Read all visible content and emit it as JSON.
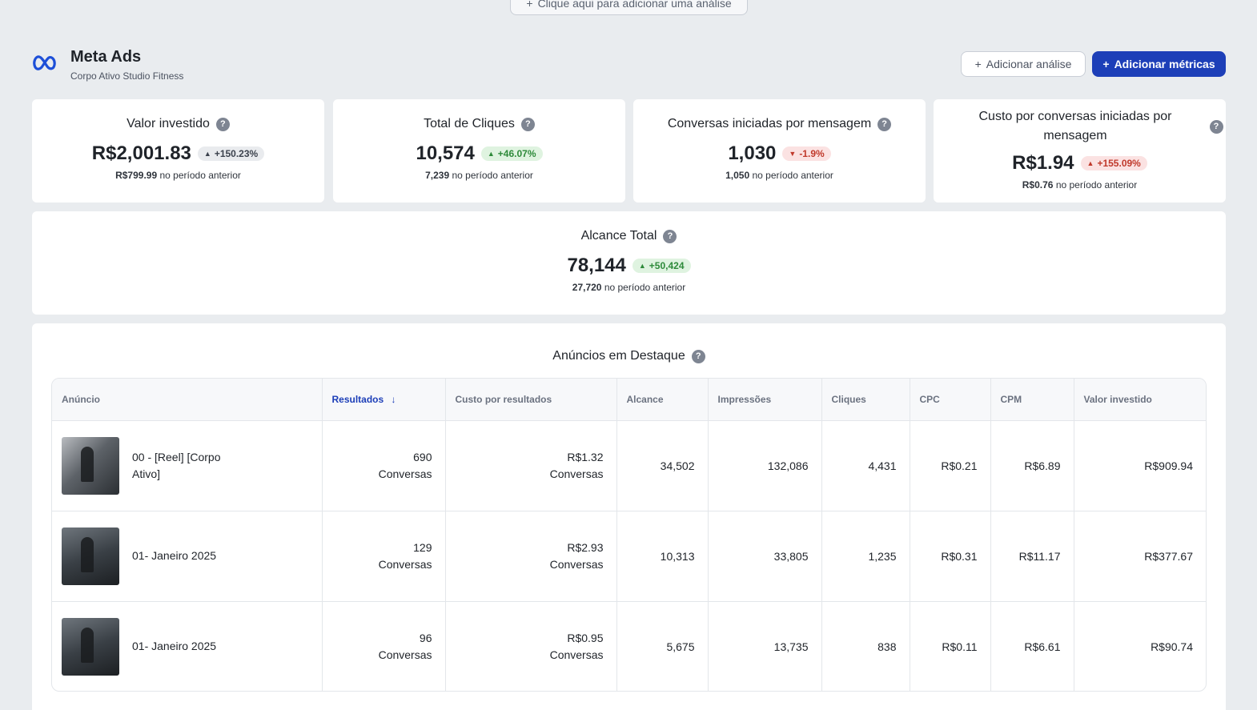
{
  "top_add": {
    "label": "Clique aqui para adicionar uma análise"
  },
  "header": {
    "title": "Meta Ads",
    "subtitle": "Corpo Ativo Studio Fitness",
    "add_analysis": "Adicionar análise",
    "add_metrics": "Adicionar métricas"
  },
  "kpis": [
    {
      "title": "Valor investido",
      "value": "R$2,001.83",
      "change": "+150.23%",
      "trend": "up",
      "tone": "gray",
      "prev_value": "R$799.99",
      "prev_label": "no período anterior"
    },
    {
      "title": "Total de Cliques",
      "value": "10,574",
      "change": "+46.07%",
      "trend": "up",
      "tone": "green",
      "prev_value": "7,239",
      "prev_label": "no período anterior"
    },
    {
      "title": "Conversas iniciadas por mensagem",
      "value": "1,030",
      "change": "-1.9%",
      "trend": "down",
      "tone": "red",
      "prev_value": "1,050",
      "prev_label": "no período anterior"
    },
    {
      "title": "Custo por conversas iniciadas por mensagem",
      "value": "R$1.94",
      "change": "+155.09%",
      "trend": "up",
      "tone": "red",
      "prev_value": "R$0.76",
      "prev_label": "no período anterior"
    }
  ],
  "reach": {
    "title": "Alcance Total",
    "value": "78,144",
    "change": "+50,424",
    "trend": "up",
    "tone": "green",
    "prev_value": "27,720",
    "prev_label": "no período anterior"
  },
  "ads_table": {
    "title": "Anúncios em Destaque",
    "columns": [
      "Anúncio",
      "Resultados",
      "Custo por resultados",
      "Alcance",
      "Impressões",
      "Cliques",
      "CPC",
      "CPM",
      "Valor investido"
    ],
    "sorted_column": "Resultados",
    "rows": [
      {
        "name": "00 - [Reel] [Corpo Ativo]",
        "results": "690",
        "results_unit": "Conversas",
        "cost": "R$1.32",
        "cost_unit": "Conversas",
        "reach": "34,502",
        "impressions": "132,086",
        "clicks": "4,431",
        "cpc": "R$0.21",
        "cpm": "R$6.89",
        "spend": "R$909.94"
      },
      {
        "name": "01- Janeiro 2025",
        "results": "129",
        "results_unit": "Conversas",
        "cost": "R$2.93",
        "cost_unit": "Conversas",
        "reach": "10,313",
        "impressions": "33,805",
        "clicks": "1,235",
        "cpc": "R$0.31",
        "cpm": "R$11.17",
        "spend": "R$377.67"
      },
      {
        "name": "01- Janeiro 2025",
        "results": "96",
        "results_unit": "Conversas",
        "cost": "R$0.95",
        "cost_unit": "Conversas",
        "reach": "5,675",
        "impressions": "13,735",
        "clicks": "838",
        "cpc": "R$0.11",
        "cpm": "R$6.61",
        "spend": "R$90.74"
      }
    ]
  },
  "colors": {
    "primary": "#1d3fb8",
    "background": "#e9ecef",
    "positive": "#2e8a3a",
    "negative": "#c0392b"
  }
}
